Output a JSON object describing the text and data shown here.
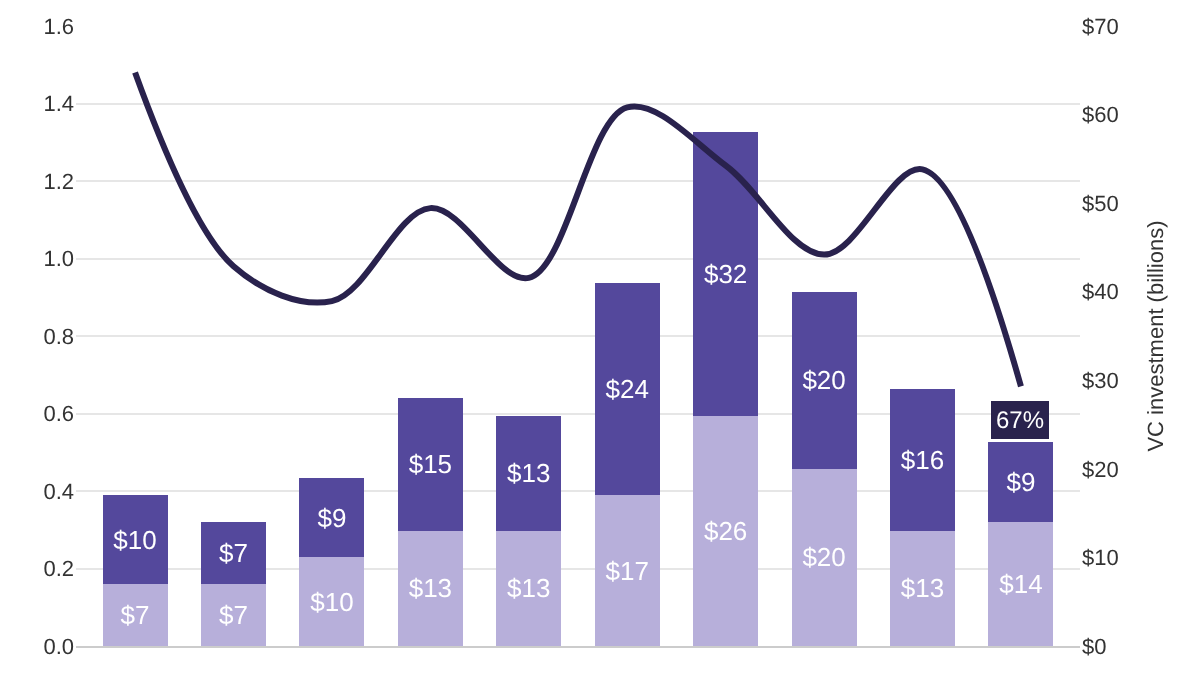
{
  "chart_data": {
    "type": "bar",
    "stacked": true,
    "categories": [
      null,
      null,
      null,
      null,
      null,
      null,
      null,
      null,
      null,
      null
    ],
    "series": [
      {
        "color": "#b7afda",
        "axis": "y2",
        "values": [
          7,
          7,
          10,
          13,
          13,
          17,
          26,
          20,
          13,
          14
        ],
        "value_labels": [
          "$7",
          "$7",
          "$10",
          "$13",
          "$13",
          "$17",
          "$26",
          "$20",
          "$13",
          "$14"
        ]
      },
      {
        "color": "#54489c",
        "axis": "y2",
        "values": [
          10,
          7,
          9,
          15,
          13,
          24,
          32,
          20,
          16,
          9
        ],
        "value_labels": [
          "$10",
          "$7",
          "$9",
          "$15",
          "$13",
          "$24",
          "$32",
          "$20",
          "$16",
          "$9"
        ]
      },
      {
        "type": "line",
        "color": "#29224d",
        "axis": "y",
        "values": [
          1.48,
          0.98,
          0.89,
          1.13,
          0.95,
          1.39,
          1.24,
          1.01,
          1.23,
          0.67
        ]
      }
    ],
    "y2label": "VC investment (billions)",
    "ylim": [
      0,
      1.6
    ],
    "yticks": [
      {
        "value": 0,
        "label": "0.0"
      },
      {
        "value": 0.2,
        "label": "0.2"
      },
      {
        "value": 0.4,
        "label": "0.4"
      },
      {
        "value": 0.6,
        "label": "0.6"
      },
      {
        "value": 0.8,
        "label": "0.8"
      },
      {
        "value": 1.0,
        "label": "1.0"
      },
      {
        "value": 1.2,
        "label": "1.2"
      },
      {
        "value": 1.4,
        "label": "1.4"
      },
      {
        "value": 1.6,
        "label": "1.6"
      }
    ],
    "y2lim": [
      0,
      70
    ],
    "y2ticks": [
      {
        "value": 0,
        "label": "$0"
      },
      {
        "value": 10,
        "label": "$10"
      },
      {
        "value": 20,
        "label": "$20"
      },
      {
        "value": 30,
        "label": "$30"
      },
      {
        "value": 40,
        "label": "$40"
      },
      {
        "value": 50,
        "label": "$50"
      },
      {
        "value": 60,
        "label": "$60"
      },
      {
        "value": 70,
        "label": "$70"
      }
    ],
    "annotations": [
      {
        "text": "67%",
        "y": 0.67
      }
    ],
    "grid": "y",
    "marker": "none",
    "line_style": "solid",
    "legend": false
  }
}
